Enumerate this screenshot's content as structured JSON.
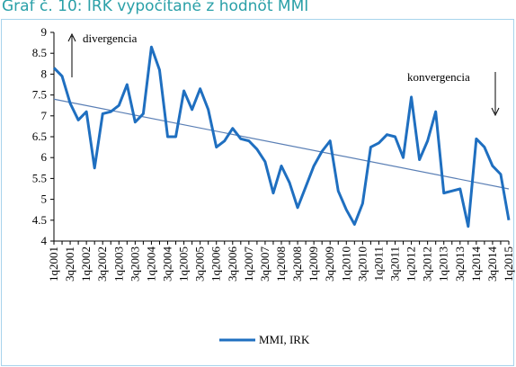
{
  "chart_data": {
    "type": "line",
    "title": "Graf č. 10: IRK vypočítané z hodnôt MMI",
    "categories": [
      "1q2001",
      null,
      "3q2001",
      null,
      "1q2002",
      null,
      "3q2002",
      null,
      "1q2003",
      null,
      "3q2003",
      null,
      "1q2004",
      null,
      "3q2004",
      null,
      "1q2005",
      null,
      "3q2005",
      null,
      "1q2006",
      null,
      "3q2006",
      null,
      "1q2007",
      null,
      "3q2007",
      null,
      "1q2008",
      null,
      "3q2008",
      null,
      "1q2009",
      null,
      "3q2009",
      null,
      "1q2010",
      null,
      "3q2010",
      null,
      "1q2011",
      null,
      "3q2011",
      null,
      "1q2012",
      null,
      "3q2012",
      null,
      "1q2013",
      null,
      "3q2013",
      null,
      "1q2014",
      null,
      "3q2014",
      null,
      "1q2015"
    ],
    "series": [
      {
        "name": "MMI, IRK",
        "color": "#1f6fc0",
        "values": [
          8.15,
          7.95,
          7.3,
          6.9,
          7.1,
          5.75,
          7.05,
          7.1,
          7.25,
          7.75,
          6.85,
          7.05,
          8.65,
          8.1,
          6.5,
          6.5,
          7.6,
          7.15,
          7.65,
          7.15,
          6.25,
          6.4,
          6.7,
          6.45,
          6.4,
          6.2,
          5.9,
          5.15,
          5.8,
          5.4,
          4.8,
          5.3,
          5.8,
          6.15,
          6.4,
          5.2,
          4.75,
          4.4,
          4.9,
          6.25,
          6.35,
          6.55,
          6.5,
          6.0,
          7.45,
          5.95,
          6.4,
          7.1,
          5.15,
          5.2,
          5.25,
          4.35,
          6.45,
          6.25,
          5.8,
          5.6,
          4.5
        ]
      }
    ],
    "trendline": {
      "color": "#5a7fb5",
      "start": 7.4,
      "end": 5.25
    },
    "annotations": {
      "up": "divergencia",
      "down": "konvergencia"
    },
    "ylim": [
      4,
      9
    ],
    "yticks": [
      4,
      4.5,
      5,
      5.5,
      6,
      6.5,
      7,
      7.5,
      8,
      8.5,
      9
    ],
    "legend": "bottom"
  }
}
